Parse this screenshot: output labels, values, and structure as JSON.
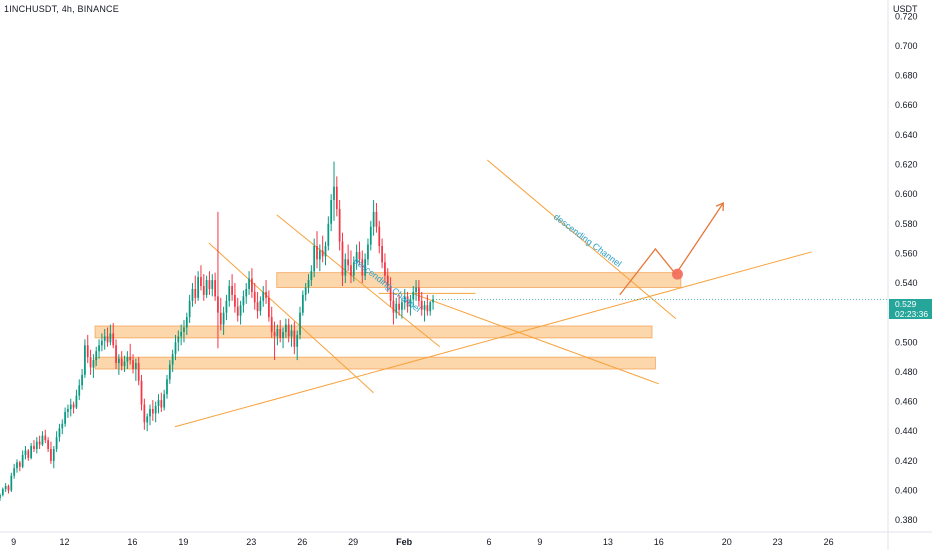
{
  "header": {
    "title": "1INCHUSDT, 4h, BINANCE",
    "currency": "USDT"
  },
  "price_tag": {
    "price": "0.529",
    "countdown": "02:23:36",
    "color": "#26a69a"
  },
  "colors": {
    "up": "#089981",
    "down": "#f23645",
    "trendline": "#f7a23c",
    "zone": "#f9c98f",
    "annotation_text": "#2ca0c8",
    "marker": "#f26b5b"
  },
  "annotations": {
    "channel_label_1": "descending Channel",
    "channel_label_2": "descending Channel"
  },
  "chart_data": {
    "type": "candlestick",
    "title": "1INCHUSDT, 4h, BINANCE",
    "xlabel": "",
    "ylabel": "USDT",
    "ylim": [
      0.372,
      0.731
    ],
    "y_ticks": [
      "0.720",
      "0.700",
      "0.680",
      "0.660",
      "0.640",
      "0.620",
      "0.600",
      "0.580",
      "0.560",
      "0.540",
      "0.520",
      "0.500",
      "0.480",
      "0.460",
      "0.440",
      "0.420",
      "0.400",
      "0.380"
    ],
    "x_ticks": [
      {
        "label": "9",
        "day": 9
      },
      {
        "label": "12",
        "day": 12
      },
      {
        "label": "16",
        "day": 16
      },
      {
        "label": "19",
        "day": 19
      },
      {
        "label": "23",
        "day": 23
      },
      {
        "label": "26",
        "day": 26
      },
      {
        "label": "29",
        "day": 29
      },
      {
        "label": "Feb",
        "day": 32
      },
      {
        "label": "6",
        "day": 37
      },
      {
        "label": "9",
        "day": 40
      },
      {
        "label": "13",
        "day": 44
      },
      {
        "label": "16",
        "day": 47
      },
      {
        "label": "20",
        "day": 51
      },
      {
        "label": "23",
        "day": 54
      },
      {
        "label": "26",
        "day": 57
      }
    ],
    "x_range_days": [
      8.2,
      60.5
    ],
    "candle_interval_days": 0.1667,
    "ohlc_start_day": 8.2,
    "ohlc": [
      [
        0.395,
        0.398,
        0.393,
        0.397
      ],
      [
        0.397,
        0.402,
        0.396,
        0.401
      ],
      [
        0.401,
        0.405,
        0.399,
        0.403
      ],
      [
        0.403,
        0.404,
        0.398,
        0.4
      ],
      [
        0.4,
        0.412,
        0.399,
        0.41
      ],
      [
        0.41,
        0.418,
        0.408,
        0.415
      ],
      [
        0.415,
        0.421,
        0.412,
        0.419
      ],
      [
        0.419,
        0.42,
        0.413,
        0.416
      ],
      [
        0.416,
        0.427,
        0.415,
        0.424
      ],
      [
        0.424,
        0.43,
        0.421,
        0.427
      ],
      [
        0.427,
        0.428,
        0.42,
        0.422
      ],
      [
        0.422,
        0.432,
        0.421,
        0.43
      ],
      [
        0.43,
        0.434,
        0.426,
        0.428
      ],
      [
        0.428,
        0.436,
        0.425,
        0.433
      ],
      [
        0.433,
        0.437,
        0.428,
        0.431
      ],
      [
        0.431,
        0.44,
        0.43,
        0.437
      ],
      [
        0.437,
        0.441,
        0.432,
        0.434
      ],
      [
        0.434,
        0.436,
        0.426,
        0.428
      ],
      [
        0.428,
        0.433,
        0.418,
        0.42
      ],
      [
        0.42,
        0.43,
        0.415,
        0.428
      ],
      [
        0.428,
        0.44,
        0.426,
        0.436
      ],
      [
        0.436,
        0.445,
        0.433,
        0.442
      ],
      [
        0.442,
        0.448,
        0.438,
        0.445
      ],
      [
        0.445,
        0.456,
        0.443,
        0.453
      ],
      [
        0.453,
        0.458,
        0.449,
        0.455
      ],
      [
        0.455,
        0.462,
        0.45,
        0.458
      ],
      [
        0.458,
        0.46,
        0.452,
        0.456
      ],
      [
        0.456,
        0.468,
        0.455,
        0.464
      ],
      [
        0.464,
        0.475,
        0.461,
        0.471
      ],
      [
        0.471,
        0.482,
        0.468,
        0.478
      ],
      [
        0.478,
        0.502,
        0.476,
        0.498
      ],
      [
        0.498,
        0.505,
        0.486,
        0.49
      ],
      [
        0.49,
        0.495,
        0.478,
        0.483
      ],
      [
        0.483,
        0.492,
        0.476,
        0.488
      ],
      [
        0.488,
        0.497,
        0.484,
        0.494
      ],
      [
        0.494,
        0.502,
        0.489,
        0.498
      ],
      [
        0.498,
        0.506,
        0.494,
        0.501
      ],
      [
        0.501,
        0.509,
        0.495,
        0.504
      ],
      [
        0.504,
        0.51,
        0.497,
        0.5
      ],
      [
        0.5,
        0.512,
        0.498,
        0.506
      ],
      [
        0.506,
        0.513,
        0.496,
        0.498
      ],
      [
        0.498,
        0.502,
        0.482,
        0.486
      ],
      [
        0.486,
        0.492,
        0.478,
        0.489
      ],
      [
        0.489,
        0.494,
        0.481,
        0.484
      ],
      [
        0.484,
        0.491,
        0.48,
        0.487
      ],
      [
        0.487,
        0.494,
        0.482,
        0.49
      ],
      [
        0.49,
        0.499,
        0.485,
        0.488
      ],
      [
        0.488,
        0.492,
        0.479,
        0.482
      ],
      [
        0.482,
        0.489,
        0.474,
        0.486
      ],
      [
        0.486,
        0.49,
        0.471,
        0.474
      ],
      [
        0.474,
        0.478,
        0.454,
        0.458
      ],
      [
        0.458,
        0.462,
        0.441,
        0.446
      ],
      [
        0.446,
        0.452,
        0.44,
        0.45
      ],
      [
        0.45,
        0.458,
        0.444,
        0.455
      ],
      [
        0.455,
        0.461,
        0.447,
        0.452
      ],
      [
        0.452,
        0.46,
        0.446,
        0.457
      ],
      [
        0.457,
        0.465,
        0.452,
        0.461
      ],
      [
        0.461,
        0.466,
        0.453,
        0.456
      ],
      [
        0.456,
        0.468,
        0.454,
        0.465
      ],
      [
        0.465,
        0.478,
        0.462,
        0.475
      ],
      [
        0.475,
        0.488,
        0.472,
        0.485
      ],
      [
        0.485,
        0.495,
        0.48,
        0.492
      ],
      [
        0.492,
        0.505,
        0.488,
        0.5
      ],
      [
        0.5,
        0.508,
        0.494,
        0.504
      ],
      [
        0.504,
        0.512,
        0.498,
        0.507
      ],
      [
        0.507,
        0.515,
        0.5,
        0.51
      ],
      [
        0.51,
        0.52,
        0.505,
        0.517
      ],
      [
        0.517,
        0.532,
        0.513,
        0.528
      ],
      [
        0.528,
        0.54,
        0.524,
        0.536
      ],
      [
        0.536,
        0.545,
        0.526,
        0.53
      ],
      [
        0.53,
        0.548,
        0.528,
        0.544
      ],
      [
        0.544,
        0.552,
        0.535,
        0.538
      ],
      [
        0.538,
        0.546,
        0.528,
        0.532
      ],
      [
        0.532,
        0.545,
        0.53,
        0.542
      ],
      [
        0.542,
        0.548,
        0.532,
        0.536
      ],
      [
        0.536,
        0.546,
        0.531,
        0.542
      ],
      [
        0.542,
        0.547,
        0.528,
        0.531
      ],
      [
        0.531,
        0.588,
        0.496,
        0.52
      ],
      [
        0.52,
        0.53,
        0.508,
        0.512
      ],
      [
        0.512,
        0.524,
        0.505,
        0.52
      ],
      [
        0.52,
        0.532,
        0.515,
        0.528
      ],
      [
        0.528,
        0.542,
        0.524,
        0.538
      ],
      [
        0.538,
        0.546,
        0.528,
        0.532
      ],
      [
        0.532,
        0.54,
        0.52,
        0.524
      ],
      [
        0.524,
        0.53,
        0.514,
        0.518
      ],
      [
        0.518,
        0.528,
        0.512,
        0.525
      ],
      [
        0.525,
        0.535,
        0.52,
        0.531
      ],
      [
        0.531,
        0.54,
        0.526,
        0.536
      ],
      [
        0.536,
        0.548,
        0.532,
        0.543
      ],
      [
        0.543,
        0.55,
        0.53,
        0.534
      ],
      [
        0.534,
        0.54,
        0.522,
        0.527
      ],
      [
        0.527,
        0.534,
        0.516,
        0.521
      ],
      [
        0.521,
        0.531,
        0.518,
        0.528
      ],
      [
        0.528,
        0.538,
        0.524,
        0.534
      ],
      [
        0.534,
        0.542,
        0.526,
        0.53
      ],
      [
        0.53,
        0.535,
        0.514,
        0.517
      ],
      [
        0.517,
        0.524,
        0.503,
        0.507
      ],
      [
        0.507,
        0.514,
        0.488,
        0.504
      ],
      [
        0.504,
        0.512,
        0.498,
        0.509
      ],
      [
        0.509,
        0.515,
        0.5,
        0.503
      ],
      [
        0.503,
        0.51,
        0.496,
        0.507
      ],
      [
        0.507,
        0.516,
        0.503,
        0.512
      ],
      [
        0.512,
        0.516,
        0.5,
        0.504
      ],
      [
        0.504,
        0.512,
        0.497,
        0.508
      ],
      [
        0.508,
        0.514,
        0.492,
        0.497
      ],
      [
        0.497,
        0.508,
        0.488,
        0.505
      ],
      [
        0.505,
        0.524,
        0.502,
        0.52
      ],
      [
        0.52,
        0.535,
        0.518,
        0.532
      ],
      [
        0.532,
        0.54,
        0.528,
        0.537
      ],
      [
        0.537,
        0.546,
        0.533,
        0.542
      ],
      [
        0.542,
        0.552,
        0.538,
        0.548
      ],
      [
        0.548,
        0.57,
        0.544,
        0.565
      ],
      [
        0.565,
        0.575,
        0.55,
        0.556
      ],
      [
        0.556,
        0.566,
        0.548,
        0.562
      ],
      [
        0.562,
        0.572,
        0.554,
        0.558
      ],
      [
        0.558,
        0.568,
        0.552,
        0.565
      ],
      [
        0.565,
        0.585,
        0.562,
        0.58
      ],
      [
        0.58,
        0.6,
        0.575,
        0.596
      ],
      [
        0.596,
        0.622,
        0.582,
        0.605
      ],
      [
        0.605,
        0.612,
        0.585,
        0.59
      ],
      [
        0.59,
        0.596,
        0.562,
        0.568
      ],
      [
        0.568,
        0.574,
        0.538,
        0.545
      ],
      [
        0.545,
        0.56,
        0.54,
        0.556
      ],
      [
        0.556,
        0.566,
        0.548,
        0.552
      ],
      [
        0.552,
        0.562,
        0.54,
        0.545
      ],
      [
        0.545,
        0.558,
        0.541,
        0.554
      ],
      [
        0.554,
        0.566,
        0.549,
        0.561
      ],
      [
        0.561,
        0.568,
        0.552,
        0.556
      ],
      [
        0.556,
        0.562,
        0.54,
        0.545
      ],
      [
        0.545,
        0.56,
        0.542,
        0.556
      ],
      [
        0.556,
        0.57,
        0.552,
        0.566
      ],
      [
        0.566,
        0.582,
        0.562,
        0.578
      ],
      [
        0.578,
        0.596,
        0.572,
        0.588
      ],
      [
        0.588,
        0.594,
        0.574,
        0.578
      ],
      [
        0.578,
        0.582,
        0.56,
        0.565
      ],
      [
        0.565,
        0.57,
        0.55,
        0.554
      ],
      [
        0.554,
        0.56,
        0.54,
        0.545
      ],
      [
        0.545,
        0.55,
        0.534,
        0.538
      ],
      [
        0.538,
        0.544,
        0.524,
        0.528
      ],
      [
        0.528,
        0.534,
        0.512,
        0.52
      ],
      [
        0.52,
        0.53,
        0.516,
        0.526
      ],
      [
        0.526,
        0.532,
        0.518,
        0.522
      ],
      [
        0.522,
        0.53,
        0.516,
        0.527
      ],
      [
        0.527,
        0.536,
        0.522,
        0.531
      ],
      [
        0.531,
        0.534,
        0.52,
        0.524
      ],
      [
        0.524,
        0.532,
        0.518,
        0.529
      ],
      [
        0.529,
        0.538,
        0.524,
        0.534
      ],
      [
        0.534,
        0.542,
        0.528,
        0.537
      ],
      [
        0.537,
        0.542,
        0.524,
        0.528
      ],
      [
        0.528,
        0.534,
        0.518,
        0.522
      ],
      [
        0.522,
        0.528,
        0.514,
        0.525
      ],
      [
        0.525,
        0.532,
        0.518,
        0.521
      ],
      [
        0.521,
        0.528,
        0.518,
        0.527
      ],
      [
        0.527,
        0.532,
        0.522,
        0.529
      ]
    ],
    "zones": [
      {
        "y_low": 0.537,
        "y_high": 0.547,
        "x_start_day": 24.5,
        "x_end_day": 48.3
      },
      {
        "y_low": 0.503,
        "y_high": 0.511,
        "x_start_day": 13.8,
        "x_end_day": 46.6
      },
      {
        "y_low": 0.482,
        "y_high": 0.49,
        "x_start_day": 13.8,
        "x_end_day": 46.8
      }
    ],
    "trendlines": [
      {
        "from": [
          18.5,
          0.443
        ],
        "to": [
          56.0,
          0.561
        ]
      },
      {
        "from": [
          20.5,
          0.567
        ],
        "to": [
          30.2,
          0.466
        ]
      },
      {
        "from": [
          24.5,
          0.586
        ],
        "to": [
          34.1,
          0.497
        ]
      },
      {
        "from": [
          32.5,
          0.533
        ],
        "to": [
          47.0,
          0.472
        ]
      },
      {
        "from": [
          36.9,
          0.623
        ],
        "to": [
          48.0,
          0.516
        ]
      },
      {
        "from": [
          30.5,
          0.533
        ],
        "to": [
          36.2,
          0.533
        ]
      }
    ],
    "projection_path": [
      [
        44.7,
        0.532
      ],
      [
        46.8,
        0.563
      ],
      [
        48.0,
        0.546
      ],
      [
        50.8,
        0.594
      ]
    ],
    "marker_point": [
      48.1,
      0.546
    ],
    "last_price": 0.529
  }
}
